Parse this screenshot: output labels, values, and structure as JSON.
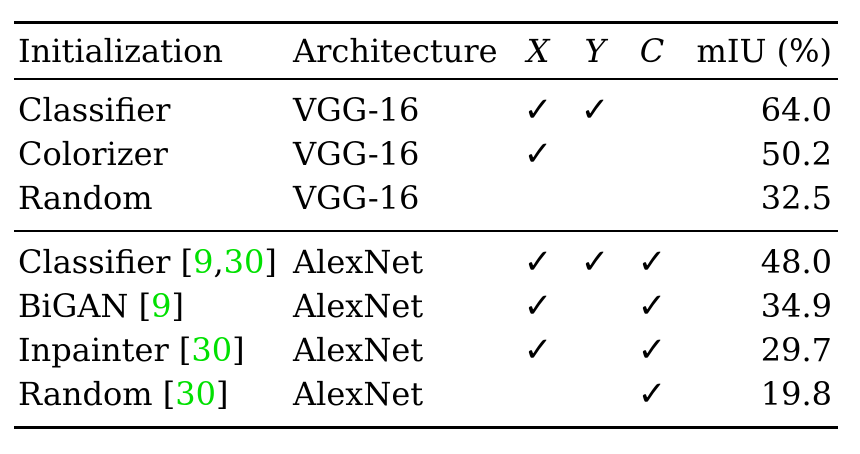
{
  "columns": {
    "initialization": "Initialization",
    "architecture": "Architecture",
    "x": "X",
    "y": "Y",
    "c": "C",
    "miu": "mIU (%)"
  },
  "check_mark": "✓",
  "groups": [
    {
      "rows": [
        {
          "init": "Classifier",
          "cite_open": "",
          "cite_a": "",
          "cite_sep": "",
          "cite_b": "",
          "cite_close": "",
          "arch": "VGG-16",
          "x": "✓",
          "y": "✓",
          "c": "",
          "miu": "64.0"
        },
        {
          "init": "Colorizer",
          "cite_open": "",
          "cite_a": "",
          "cite_sep": "",
          "cite_b": "",
          "cite_close": "",
          "arch": "VGG-16",
          "x": "✓",
          "y": "",
          "c": "",
          "miu": "50.2"
        },
        {
          "init": "Random",
          "cite_open": "",
          "cite_a": "",
          "cite_sep": "",
          "cite_b": "",
          "cite_close": "",
          "arch": "VGG-16",
          "x": "",
          "y": "",
          "c": "",
          "miu": "32.5"
        }
      ]
    },
    {
      "rows": [
        {
          "init": "Classifier ",
          "cite_open": "[",
          "cite_a": "9",
          "cite_sep": ",",
          "cite_b": "30",
          "cite_close": "]",
          "arch": "AlexNet",
          "x": "✓",
          "y": "✓",
          "c": "✓",
          "miu": "48.0"
        },
        {
          "init": "BiGAN ",
          "cite_open": "[",
          "cite_a": "9",
          "cite_sep": "",
          "cite_b": "",
          "cite_close": "]",
          "arch": "AlexNet",
          "x": "✓",
          "y": "",
          "c": "✓",
          "miu": "34.9"
        },
        {
          "init": "Inpainter ",
          "cite_open": "[",
          "cite_a": "30",
          "cite_sep": "",
          "cite_b": "",
          "cite_close": "]",
          "arch": "AlexNet",
          "x": "✓",
          "y": "",
          "c": "✓",
          "miu": "29.7"
        },
        {
          "init": "Random ",
          "cite_open": "[",
          "cite_a": "30",
          "cite_sep": "",
          "cite_b": "",
          "cite_close": "]",
          "arch": "AlexNet",
          "x": "",
          "y": "",
          "c": "✓",
          "miu": "19.8"
        }
      ]
    }
  ],
  "colors": {
    "citation": "#00e000",
    "text": "#000000",
    "rule": "#000000"
  }
}
